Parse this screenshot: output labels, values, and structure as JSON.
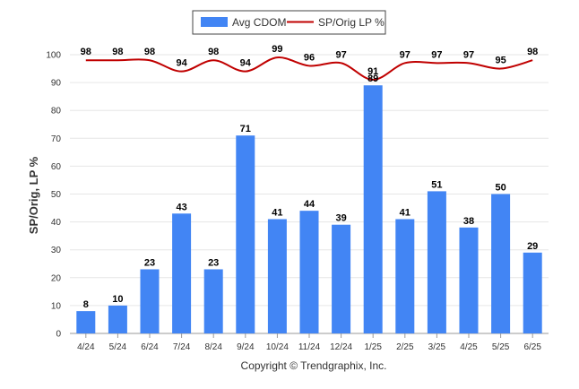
{
  "chart_data": {
    "type": "bar",
    "categories": [
      "4/24",
      "5/24",
      "6/24",
      "7/24",
      "8/24",
      "9/24",
      "10/24",
      "11/24",
      "12/24",
      "1/25",
      "2/25",
      "3/25",
      "4/25",
      "5/25",
      "6/25"
    ],
    "series": [
      {
        "name": "Avg CDOM",
        "type": "bar",
        "color": "#4285f4",
        "values": [
          8,
          10,
          23,
          43,
          23,
          71,
          41,
          44,
          39,
          89,
          41,
          51,
          38,
          50,
          29
        ]
      },
      {
        "name": "SP/Orig LP %",
        "type": "line",
        "color": "#c00000",
        "values": [
          98,
          98,
          98,
          94,
          98,
          94,
          99,
          96,
          97,
          91,
          97,
          97,
          97,
          95,
          98
        ]
      }
    ],
    "ylabel": "SP/Orig, LP %",
    "xlabel": "",
    "ylim": [
      0,
      100
    ],
    "yticks": [
      0,
      10,
      20,
      30,
      40,
      50,
      60,
      70,
      80,
      90,
      100
    ],
    "grid": true,
    "legend": "top-center"
  },
  "footer": "Copyright © Trendgraphix, Inc."
}
